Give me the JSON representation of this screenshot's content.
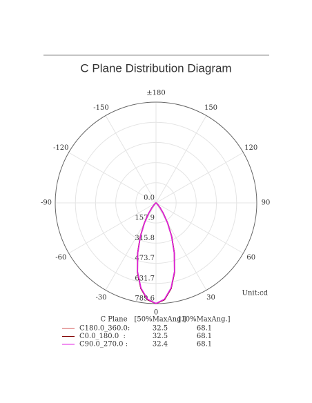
{
  "chart_data": {
    "type": "polar",
    "title": "C Plane Distribution Diagram",
    "unit_label": "Unit:cd",
    "angle_ticks": [
      {
        "value": 180,
        "label": "±180"
      },
      -150,
      150,
      -120,
      120,
      -90,
      90,
      -60,
      60,
      -30,
      30,
      0
    ],
    "rlim": [
      0,
      789.6
    ],
    "rticks": [
      {
        "value": 0,
        "label": "0.0"
      },
      157.9,
      315.8,
      473.7,
      631.7,
      789.6
    ],
    "grid": true,
    "legend_header": [
      "C Plane",
      "[50%MaxAng.]",
      "[10%MaxAng.]"
    ],
    "series": [
      {
        "name": "C180.0_360.0:",
        "color": "#d05050",
        "value_color": "#c00000",
        "beam_50": 32.5,
        "beam_10": 68.1,
        "x": [
          -90,
          -60,
          -50,
          -45,
          -40,
          -35,
          -30,
          -25,
          -20,
          -15,
          -10,
          -5,
          0,
          5,
          10,
          15,
          20,
          25,
          30,
          35,
          40,
          45,
          50,
          60,
          90
        ],
        "values": [
          0,
          2,
          8,
          20,
          50,
          100,
          180,
          290,
          420,
          560,
          680,
          760,
          789,
          760,
          680,
          560,
          420,
          290,
          180,
          100,
          50,
          20,
          8,
          2,
          0
        ]
      },
      {
        "name": "C0.0_180.0  :",
        "color": "#800000",
        "value_color": "#800000",
        "beam_50": 32.5,
        "beam_10": 68.1,
        "x": [
          -90,
          -60,
          -50,
          -45,
          -40,
          -35,
          -30,
          -25,
          -20,
          -15,
          -10,
          -5,
          0,
          5,
          10,
          15,
          20,
          25,
          30,
          35,
          40,
          45,
          50,
          60,
          90
        ],
        "values": [
          0,
          2,
          8,
          20,
          50,
          100,
          182,
          292,
          422,
          562,
          682,
          762,
          789,
          762,
          682,
          562,
          422,
          292,
          182,
          100,
          50,
          20,
          8,
          2,
          0
        ]
      },
      {
        "name": "C90.0_270.0 :",
        "color": "#e020e0",
        "value_color": "#ff00ff",
        "beam_50": 32.4,
        "beam_10": 68.1,
        "x": [
          -90,
          -60,
          -50,
          -45,
          -40,
          -35,
          -30,
          -25,
          -20,
          -15,
          -10,
          -5,
          0,
          5,
          10,
          15,
          20,
          25,
          30,
          35,
          40,
          45,
          50,
          60,
          90
        ],
        "values": [
          0,
          2,
          8,
          20,
          50,
          100,
          178,
          288,
          418,
          558,
          678,
          758,
          789,
          758,
          678,
          558,
          418,
          288,
          178,
          100,
          50,
          20,
          8,
          2,
          0
        ]
      }
    ]
  }
}
